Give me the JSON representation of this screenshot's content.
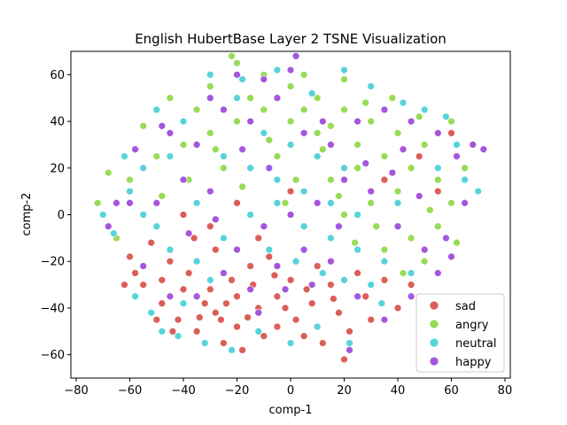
{
  "chart_data": {
    "type": "scatter",
    "title": "English HubertBase Layer 2 TSNE Visualization",
    "xlabel": "comp-1",
    "ylabel": "comp-2",
    "xlim": [
      -82,
      82
    ],
    "ylim": [
      -70,
      70
    ],
    "xticks": [
      -80,
      -60,
      -40,
      -20,
      0,
      20,
      40,
      60,
      80
    ],
    "yticks": [
      -60,
      -40,
      -20,
      0,
      20,
      40,
      60
    ],
    "legend_position": "lower-right",
    "grid": false,
    "series": [
      {
        "name": "sad",
        "color": "#db5f57",
        "points": [
          [
            -55,
            -30
          ],
          [
            -48,
            -38
          ],
          [
            -42,
            -45
          ],
          [
            -35,
            -50
          ],
          [
            -28,
            -42
          ],
          [
            -20,
            -48
          ],
          [
            -12,
            -40
          ],
          [
            -5,
            -35
          ],
          [
            2,
            -45
          ],
          [
            8,
            -38
          ],
          [
            15,
            -30
          ],
          [
            -38,
            -25
          ],
          [
            -30,
            -32
          ],
          [
            -22,
            -28
          ],
          [
            -15,
            -22
          ],
          [
            -8,
            -18
          ],
          [
            -45,
            -20
          ],
          [
            -52,
            -12
          ],
          [
            -60,
            -18
          ],
          [
            -25,
            -55
          ],
          [
            -18,
            -58
          ],
          [
            -10,
            -52
          ],
          [
            0,
            -28
          ],
          [
            10,
            -22
          ],
          [
            18,
            -42
          ],
          [
            22,
            -50
          ],
          [
            28,
            -35
          ],
          [
            35,
            -28
          ],
          [
            -32,
            -38
          ],
          [
            -40,
            -32
          ],
          [
            -48,
            -28
          ],
          [
            -58,
            -25
          ],
          [
            -5,
            -48
          ],
          [
            5,
            -52
          ],
          [
            12,
            -55
          ],
          [
            -28,
            -15
          ],
          [
            -36,
            -10
          ],
          [
            -20,
            -35
          ],
          [
            -14,
            -30
          ],
          [
            -2,
            -40
          ],
          [
            30,
            -45
          ],
          [
            40,
            -40
          ],
          [
            -50,
            -45
          ],
          [
            -44,
            -50
          ],
          [
            -26,
            -45
          ],
          [
            -16,
            -44
          ],
          [
            25,
            -25
          ],
          [
            -62,
            -30
          ],
          [
            -34,
            -44
          ],
          [
            -24,
            -38
          ],
          [
            -6,
            -26
          ],
          [
            6,
            -32
          ],
          [
            16,
            -36
          ],
          [
            45,
            -30
          ],
          [
            55,
            10
          ],
          [
            60,
            35
          ],
          [
            -12,
            -10
          ],
          [
            -30,
            -5
          ],
          [
            20,
            -62
          ],
          [
            -40,
            0
          ],
          [
            -20,
            5
          ],
          [
            0,
            10
          ],
          [
            35,
            15
          ],
          [
            48,
            25
          ]
        ]
      },
      {
        "name": "angry",
        "color": "#97db57",
        "points": [
          [
            -20,
            65
          ],
          [
            -10,
            60
          ],
          [
            0,
            55
          ],
          [
            10,
            50
          ],
          [
            20,
            45
          ],
          [
            30,
            40
          ],
          [
            40,
            35
          ],
          [
            -30,
            55
          ],
          [
            -15,
            50
          ],
          [
            5,
            45
          ],
          [
            15,
            38
          ],
          [
            25,
            30
          ],
          [
            35,
            25
          ],
          [
            45,
            20
          ],
          [
            55,
            15
          ],
          [
            50,
            30
          ],
          [
            40,
            10
          ],
          [
            30,
            5
          ],
          [
            20,
            0
          ],
          [
            10,
            35
          ],
          [
            0,
            40
          ],
          [
            -10,
            45
          ],
          [
            -20,
            40
          ],
          [
            -30,
            35
          ],
          [
            -40,
            30
          ],
          [
            -50,
            25
          ],
          [
            -60,
            15
          ],
          [
            -68,
            18
          ],
          [
            -72,
            5
          ],
          [
            -65,
            -10
          ],
          [
            45,
            -10
          ],
          [
            50,
            -20
          ],
          [
            55,
            -5
          ],
          [
            60,
            5
          ],
          [
            65,
            20
          ],
          [
            60,
            40
          ],
          [
            35,
            -15
          ],
          [
            42,
            -25
          ],
          [
            25,
            20
          ],
          [
            15,
            15
          ],
          [
            -5,
            25
          ],
          [
            -25,
            20
          ],
          [
            -35,
            45
          ],
          [
            -45,
            50
          ],
          [
            5,
            60
          ],
          [
            20,
            58
          ],
          [
            -22,
            68
          ],
          [
            12,
            28
          ],
          [
            28,
            48
          ],
          [
            48,
            42
          ],
          [
            38,
            50
          ],
          [
            -8,
            32
          ],
          [
            -28,
            28
          ],
          [
            -48,
            8
          ],
          [
            -55,
            38
          ],
          [
            62,
            -12
          ],
          [
            2,
            15
          ],
          [
            18,
            8
          ],
          [
            32,
            -5
          ],
          [
            -2,
            5
          ],
          [
            -18,
            12
          ],
          [
            -38,
            15
          ],
          [
            52,
            2
          ],
          [
            24,
            -12
          ]
        ]
      },
      {
        "name": "neutral",
        "color": "#57d3db",
        "points": [
          [
            -50,
            45
          ],
          [
            -40,
            40
          ],
          [
            -30,
            60
          ],
          [
            -20,
            50
          ],
          [
            -10,
            35
          ],
          [
            0,
            30
          ],
          [
            10,
            25
          ],
          [
            20,
            20
          ],
          [
            -60,
            10
          ],
          [
            -55,
            0
          ],
          [
            -50,
            -5
          ],
          [
            -45,
            -15
          ],
          [
            -35,
            -20
          ],
          [
            -25,
            -10
          ],
          [
            -15,
            0
          ],
          [
            -5,
            5
          ],
          [
            5,
            -5
          ],
          [
            15,
            -10
          ],
          [
            25,
            -15
          ],
          [
            35,
            -20
          ],
          [
            45,
            -25
          ],
          [
            55,
            20
          ],
          [
            62,
            30
          ],
          [
            70,
            10
          ],
          [
            -70,
            0
          ],
          [
            -66,
            -8
          ],
          [
            -58,
            -35
          ],
          [
            -52,
            -42
          ],
          [
            -42,
            -52
          ],
          [
            -32,
            -55
          ],
          [
            -22,
            -58
          ],
          [
            -12,
            -50
          ],
          [
            0,
            -55
          ],
          [
            10,
            -48
          ],
          [
            22,
            -55
          ],
          [
            30,
            -30
          ],
          [
            40,
            5
          ],
          [
            50,
            45
          ],
          [
            58,
            42
          ],
          [
            -35,
            5
          ],
          [
            -25,
            25
          ],
          [
            -15,
            20
          ],
          [
            -5,
            15
          ],
          [
            5,
            10
          ],
          [
            15,
            5
          ],
          [
            25,
            0
          ],
          [
            -45,
            25
          ],
          [
            -55,
            20
          ],
          [
            -62,
            25
          ],
          [
            30,
            55
          ],
          [
            20,
            62
          ],
          [
            -5,
            62
          ],
          [
            -18,
            58
          ],
          [
            8,
            52
          ],
          [
            42,
            48
          ],
          [
            65,
            15
          ],
          [
            -8,
            -15
          ],
          [
            2,
            -20
          ],
          [
            12,
            -25
          ],
          [
            20,
            -28
          ],
          [
            -30,
            -28
          ],
          [
            -40,
            -38
          ],
          [
            -48,
            -50
          ],
          [
            34,
            -38
          ]
        ]
      },
      {
        "name": "happy",
        "color": "#a557db",
        "points": [
          [
            -45,
            35
          ],
          [
            -35,
            30
          ],
          [
            -25,
            45
          ],
          [
            -15,
            40
          ],
          [
            -5,
            50
          ],
          [
            5,
            35
          ],
          [
            15,
            30
          ],
          [
            25,
            40
          ],
          [
            35,
            45
          ],
          [
            45,
            40
          ],
          [
            55,
            35
          ],
          [
            62,
            25
          ],
          [
            68,
            30
          ],
          [
            72,
            28
          ],
          [
            65,
            5
          ],
          [
            58,
            -10
          ],
          [
            50,
            -15
          ],
          [
            40,
            -5
          ],
          [
            30,
            10
          ],
          [
            20,
            15
          ],
          [
            10,
            5
          ],
          [
            0,
            0
          ],
          [
            -10,
            -5
          ],
          [
            -20,
            -15
          ],
          [
            -30,
            10
          ],
          [
            -40,
            15
          ],
          [
            -50,
            5
          ],
          [
            -60,
            5
          ],
          [
            -68,
            -5
          ],
          [
            -65,
            5
          ],
          [
            -55,
            -22
          ],
          [
            -45,
            -35
          ],
          [
            -35,
            -35
          ],
          [
            -25,
            -25
          ],
          [
            -15,
            -32
          ],
          [
            -5,
            -22
          ],
          [
            5,
            -15
          ],
          [
            15,
            -20
          ],
          [
            25,
            -35
          ],
          [
            35,
            -45
          ],
          [
            45,
            -35
          ],
          [
            55,
            -25
          ],
          [
            -20,
            60
          ],
          [
            -10,
            58
          ],
          [
            0,
            62
          ],
          [
            -30,
            50
          ],
          [
            12,
            40
          ],
          [
            28,
            22
          ],
          [
            38,
            18
          ],
          [
            48,
            8
          ],
          [
            -8,
            20
          ],
          [
            -18,
            28
          ],
          [
            -28,
            -2
          ],
          [
            -38,
            -8
          ],
          [
            -48,
            38
          ],
          [
            8,
            -30
          ],
          [
            18,
            -5
          ],
          [
            -2,
            -32
          ],
          [
            -12,
            -42
          ],
          [
            60,
            -18
          ],
          [
            42,
            28
          ],
          [
            2,
            68
          ],
          [
            22,
            -58
          ],
          [
            -58,
            28
          ]
        ]
      }
    ]
  }
}
